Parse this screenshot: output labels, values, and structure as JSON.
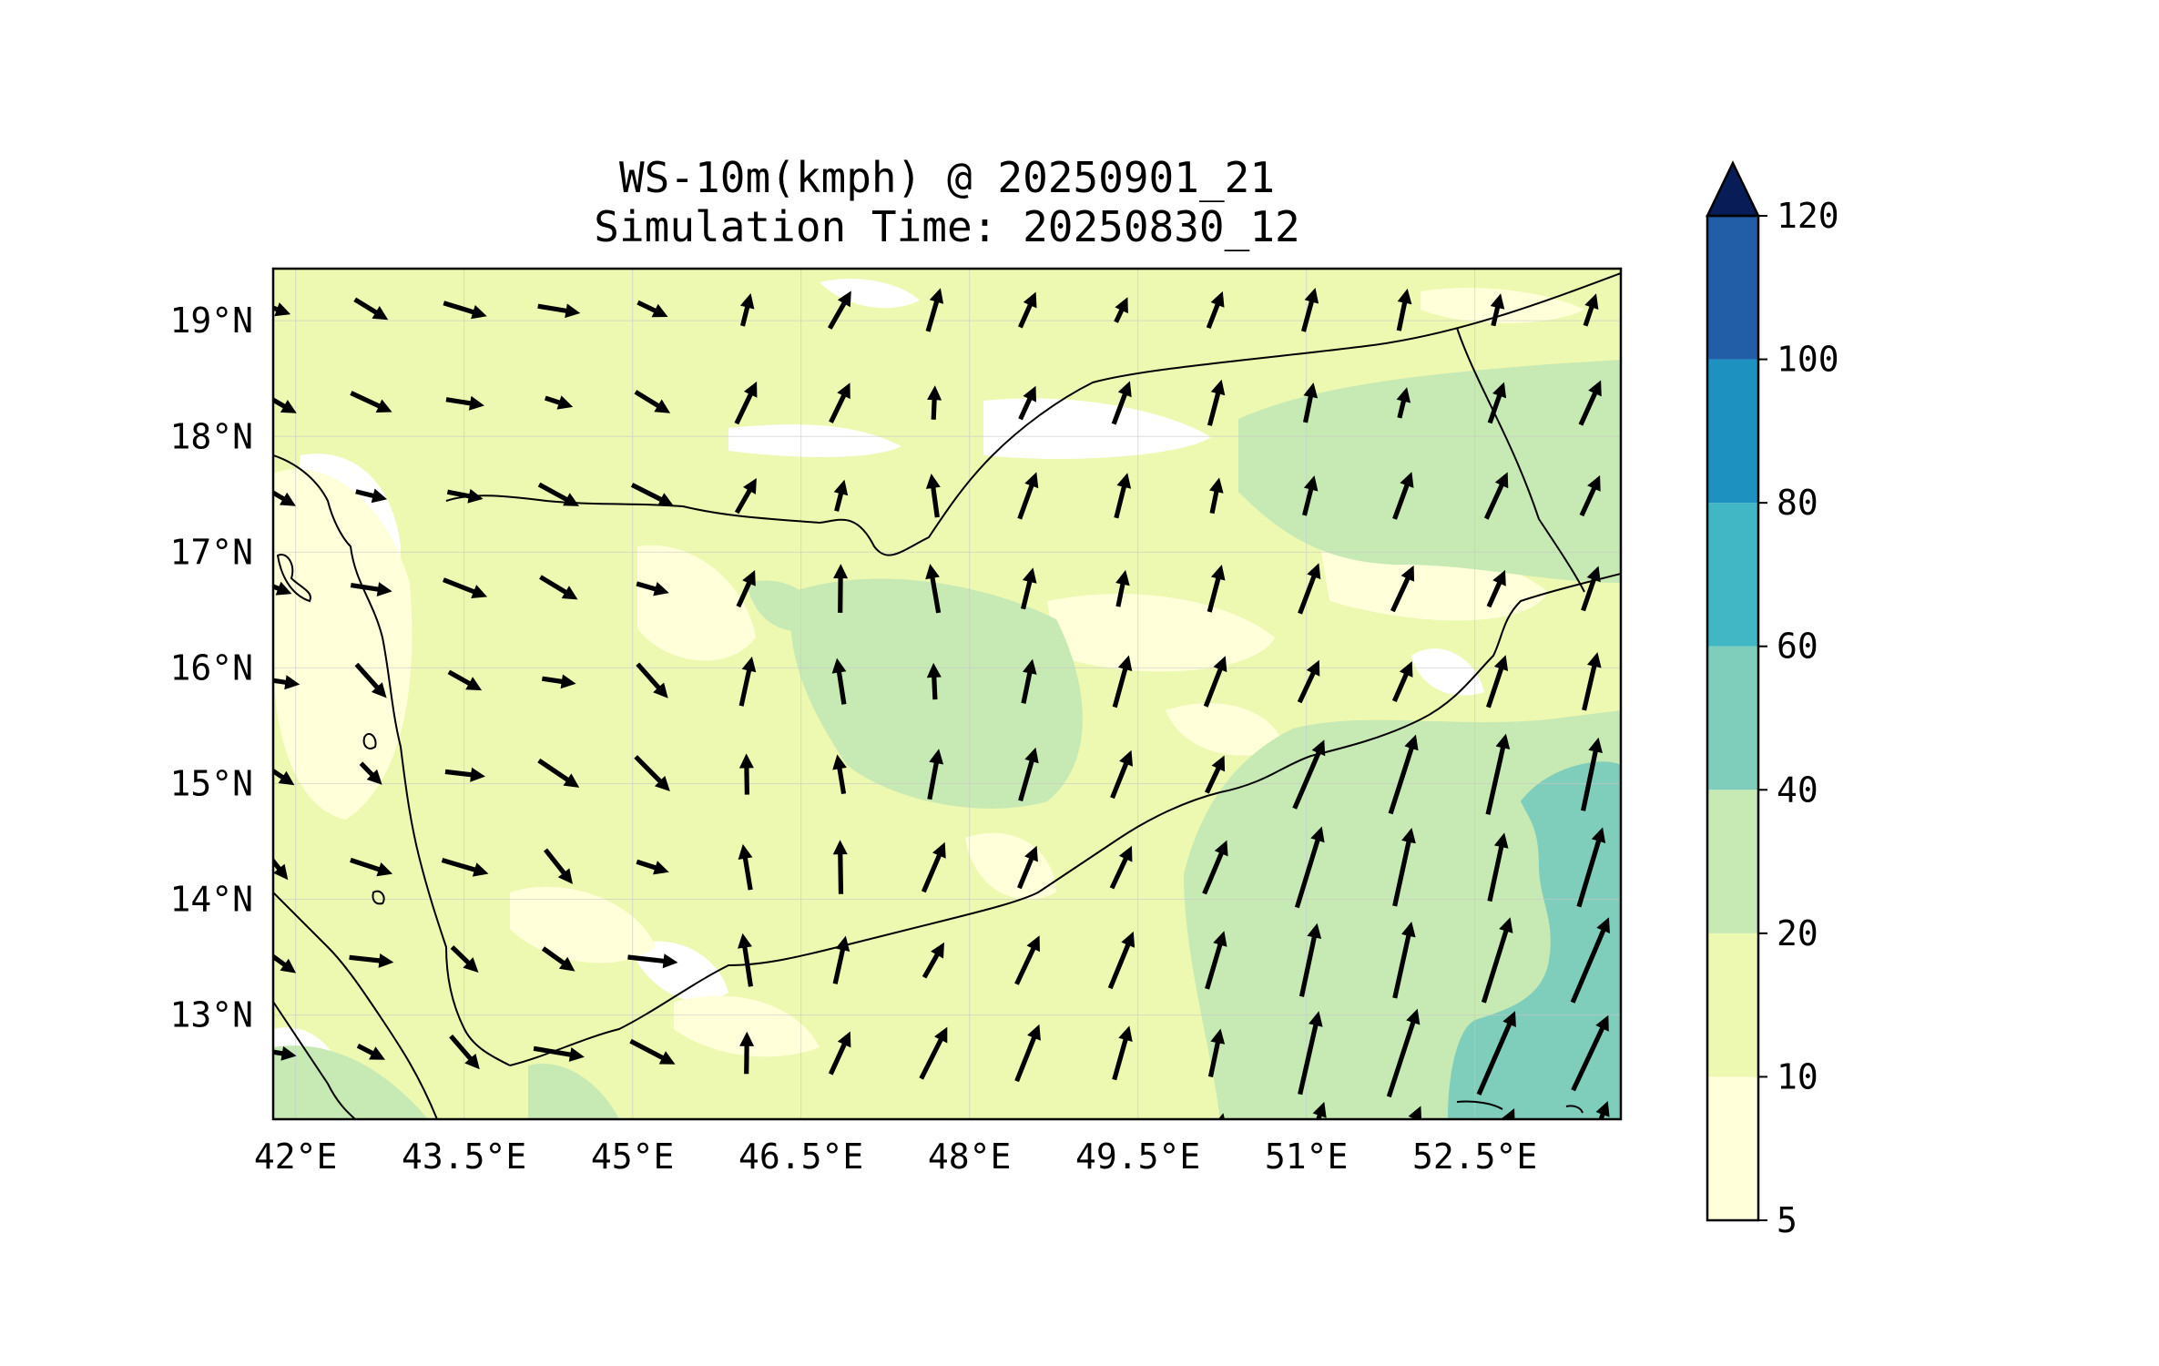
{
  "title": {
    "line1": "WS-10m(kmph) @ 20250901_21",
    "line2": "Simulation Time: 20250830_12"
  },
  "map": {
    "lon_range": [
      41.8,
      53.8
    ],
    "lat_range": [
      12.1,
      19.45
    ],
    "x_ticks": [
      {
        "lon": 42,
        "label": "42°E"
      },
      {
        "lon": 43.5,
        "label": "43.5°E"
      },
      {
        "lon": 45,
        "label": "45°E"
      },
      {
        "lon": 46.5,
        "label": "46.5°E"
      },
      {
        "lon": 48,
        "label": "48°E"
      },
      {
        "lon": 49.5,
        "label": "49.5°E"
      },
      {
        "lon": 51,
        "label": "51°E"
      },
      {
        "lon": 52.5,
        "label": "52.5°E"
      }
    ],
    "y_ticks": [
      {
        "lat": 19,
        "label": "19°N"
      },
      {
        "lat": 18,
        "label": "18°N"
      },
      {
        "lat": 17,
        "label": "17°N"
      },
      {
        "lat": 16,
        "label": "16°N"
      },
      {
        "lat": 15,
        "label": "15°N"
      },
      {
        "lat": 14,
        "label": "14°N"
      },
      {
        "lat": 13,
        "label": "13°N"
      }
    ],
    "gridlines": true,
    "vector_field": "10 m wind direction arrows, speed 5 to 55 kmph, strongest in the south-east"
  },
  "colorbar": {
    "levels": [
      "5",
      "10",
      "20",
      "40",
      "60",
      "80",
      "100",
      "120"
    ],
    "colors": [
      "#ffffd9",
      "#edf8b1",
      "#c7e9b4",
      "#7fcdbb",
      "#41b6c4",
      "#1d91c0",
      "#225ea8",
      "#0c2c84"
    ],
    "extend_color": "#081d58",
    "extend": "max"
  }
}
